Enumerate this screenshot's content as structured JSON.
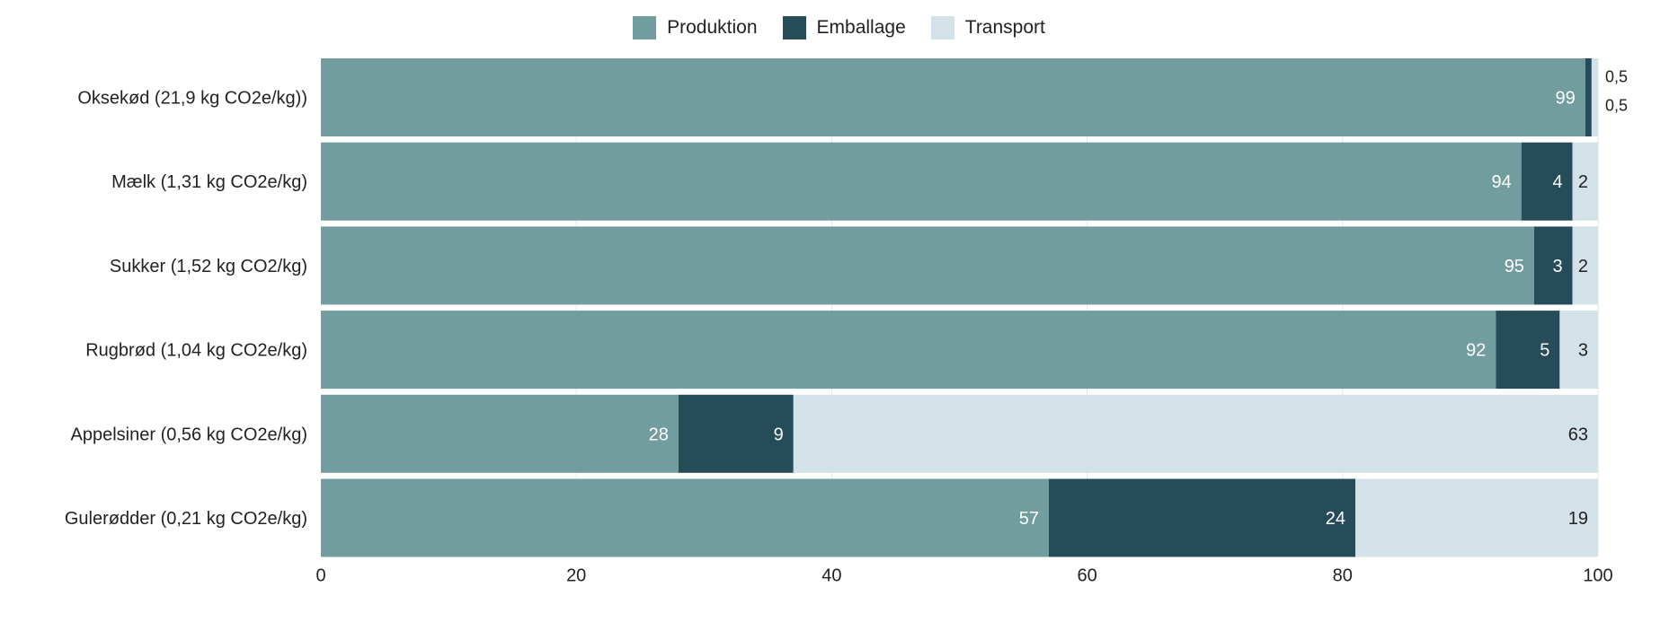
{
  "chart_data": {
    "type": "bar",
    "orientation": "horizontal",
    "stacked": true,
    "categories": [
      "Oksekød (21,9 kg CO2e/kg))",
      "Mælk (1,31 kg CO2e/kg)",
      "Sukker (1,52 kg CO2/kg)",
      "Rugbrød (1,04 kg CO2e/kg)",
      "Appelsiner (0,56 kg CO2e/kg)",
      "Gulerødder (0,21 kg CO2e/kg)"
    ],
    "series": [
      {
        "name": "Produktion",
        "color": "#729d9f",
        "values": [
          99,
          94,
          95,
          92,
          28,
          57
        ],
        "labels": [
          "99",
          "94",
          "95",
          "92",
          "28",
          "57"
        ]
      },
      {
        "name": "Emballage",
        "color": "#264c5a",
        "values": [
          0.5,
          4,
          3,
          5,
          9,
          24
        ],
        "labels": [
          "0,5",
          "4",
          "3",
          "5",
          "9",
          "24"
        ]
      },
      {
        "name": "Transport",
        "color": "#d3e1e8",
        "values": [
          0.5,
          2,
          2,
          3,
          63,
          19
        ],
        "labels": [
          "0,5",
          "2",
          "2",
          "3",
          "63",
          "19"
        ]
      }
    ],
    "xlim": [
      0,
      100
    ],
    "xticks": [
      0,
      20,
      40,
      60,
      80,
      100
    ],
    "xtick_labels": [
      "0",
      "20",
      "40",
      "60",
      "80",
      "100"
    ],
    "grid": true,
    "legend_position": "top-center"
  }
}
